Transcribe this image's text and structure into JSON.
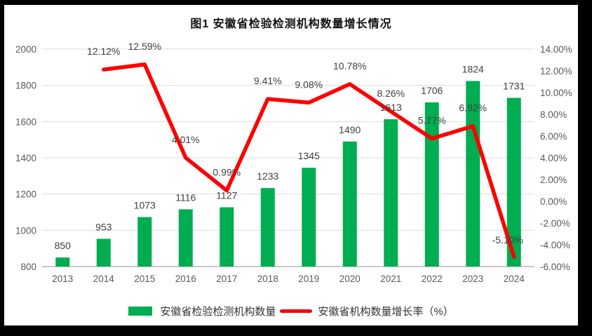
{
  "frame": {
    "color": "#000000"
  },
  "chart_data": {
    "type": "combo_bar_line",
    "title": "图1 安徽省检验检测机构数量增长情况",
    "categories": [
      "2013",
      "2014",
      "2015",
      "2016",
      "2017",
      "2018",
      "2019",
      "2020",
      "2021",
      "2022",
      "2023",
      "2024"
    ],
    "series": [
      {
        "name": "安徽省检验检测机构数量",
        "type": "bar",
        "axis": "left",
        "color": "#00AD50",
        "values": [
          850,
          953,
          1073,
          1116,
          1127,
          1233,
          1345,
          1490,
          1613,
          1706,
          1824,
          1731
        ],
        "labels": [
          "850",
          "953",
          "1073",
          "1116",
          "1127",
          "1233",
          "1345",
          "1490",
          "1613",
          "1706",
          "1824",
          "1731"
        ]
      },
      {
        "name": "安徽省机构数量增长率（%）",
        "type": "line",
        "axis": "right",
        "color": "#FE0000",
        "values": [
          null,
          12.12,
          12.59,
          4.01,
          0.99,
          9.41,
          9.08,
          10.78,
          8.26,
          5.77,
          6.92,
          -5.1
        ],
        "labels": [
          "",
          "12.12%",
          "12.59%",
          "4.01%",
          "0.99%",
          "9.41%",
          "9.08%",
          "10.78%",
          "8.26%",
          "5.77%",
          "6.92%",
          "-5.10%"
        ]
      }
    ],
    "left_axis": {
      "min": 800,
      "max": 2000,
      "step": 200,
      "tick_labels": [
        "2000",
        "1800",
        "1600",
        "1400",
        "1200",
        "1000",
        "800"
      ]
    },
    "right_axis": {
      "min": -6,
      "max": 14,
      "step": 2,
      "tick_labels": [
        "14.00%",
        "12.00%",
        "10.00%",
        "8.00%",
        "6.00%",
        "4.00%",
        "2.00%",
        "0.00%",
        "-2.00%",
        "-4.00%",
        "-6.00%"
      ]
    },
    "grid": true,
    "legend_position": "bottom",
    "colors": {
      "grid": "#DCDCDC",
      "axis_line": "#C8C8C8",
      "tick_text": "#595959",
      "data_label_text": "#404040",
      "title_text": "#111111"
    }
  },
  "legend": {
    "items": [
      {
        "label": "安徽省检验检测机构数量",
        "color": "#00AD50"
      },
      {
        "label": "安徽省机构数量增长率（%）",
        "color": "#FE0000"
      }
    ]
  }
}
